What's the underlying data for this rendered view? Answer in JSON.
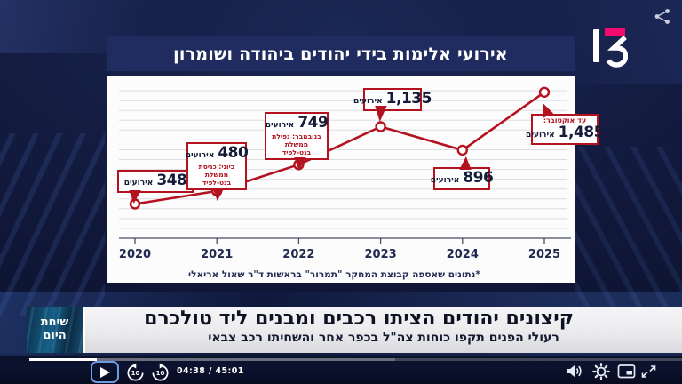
{
  "colors": {
    "accent_red": "#b5121f",
    "logo_pink": "#f20c6e",
    "panel_bg": "#fcfcfd",
    "backdrop_navy": "#141c42"
  },
  "broadcast": {
    "channel": "13"
  },
  "chart_data": {
    "type": "line",
    "title": "אירועי אלימות בידי יהודים ביהודה ושומרון",
    "categories": [
      "2020",
      "2021",
      "2022",
      "2023",
      "2024",
      "2025"
    ],
    "values": [
      348,
      480,
      749,
      1135,
      896,
      1485
    ],
    "ylim": [
      0,
      1500
    ],
    "y_gridline_step": 100,
    "grid": true,
    "legend": false,
    "line_color": "#b5121f",
    "unit": "אירועים",
    "footnote": "*נתונים שאספה קבוצת המחקר \"תמרור\" בראשות ד\"ר שאול אריאלי",
    "points": [
      {
        "year": "2020",
        "label": "348",
        "unit": "אירועים"
      },
      {
        "year": "2021",
        "label": "480",
        "unit": "אירועים",
        "note": "ביוני: כניסת ממשלת בנט-לפיד"
      },
      {
        "year": "2022",
        "label": "749",
        "unit": "אירועים",
        "note": "בנובמבר: נפילת ממשלת בנט-לפיד"
      },
      {
        "year": "2023",
        "label": "1,135",
        "unit": "אירועים"
      },
      {
        "year": "2024",
        "label": "896",
        "unit": "אירועים"
      },
      {
        "year": "2025",
        "label": "1,485",
        "unit": "אירועים",
        "pre_note": "עד אוקטובר:"
      }
    ]
  },
  "ticker": {
    "badge_line1": "שיחת",
    "badge_line2": "היום",
    "headline": "קיצונים יהודים הציתו רכבים ומבנים ליד טולכרם",
    "subheadline": "רעולי הפנים תקפו כוחות צה\"ל בכפר אחר והשחיתו רכב צבאי"
  },
  "player": {
    "time_display": "04:38 / 45:01",
    "progress_pct": 10.3,
    "buffered_pct": 56,
    "rewind_label": "10",
    "forward_label": "10"
  }
}
